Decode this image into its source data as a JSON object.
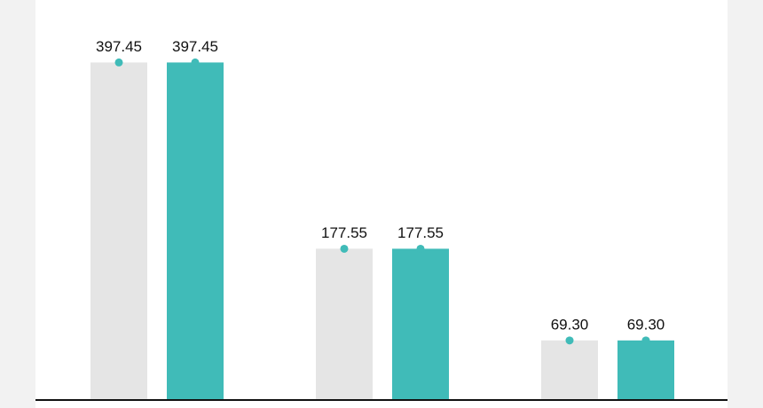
{
  "chart_data": {
    "type": "bar",
    "categories": [
      null,
      null,
      null
    ],
    "series": [
      {
        "color": "#e5e5e5",
        "values": [
          397.45,
          177.55,
          69.3
        ],
        "value_labels": [
          "397.45",
          "177.55",
          "69.30"
        ]
      },
      {
        "color": "#40bbb8",
        "values": [
          397.45,
          177.55,
          69.3
        ],
        "value_labels": [
          "397.45",
          "177.55",
          "69.30"
        ]
      }
    ],
    "marker_color": "#40bbb8",
    "ylim": [
      0,
      400
    ]
  }
}
